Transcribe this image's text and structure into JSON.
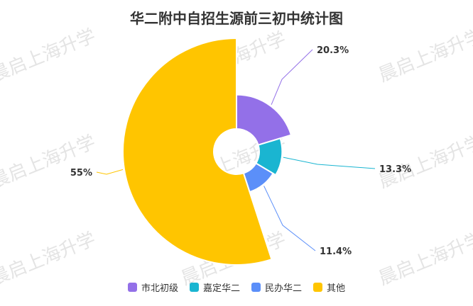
{
  "watermark": "晨启上海升学",
  "chart_data": {
    "type": "pie",
    "title": "华二附中自招生源前三初中统计图",
    "legend_position": "bottom",
    "slices": [
      {
        "name": "市北初级",
        "value": 20.3,
        "label": "20.3%",
        "color": "#9370E8"
      },
      {
        "name": "嘉定华二",
        "value": 13.3,
        "label": "13.3%",
        "color": "#1AB5D1"
      },
      {
        "name": "民办华二",
        "value": 11.4,
        "label": "11.4%",
        "color": "#5B8FF9"
      },
      {
        "name": "其他",
        "value": 55,
        "label": "55%",
        "color": "#FFC500"
      }
    ]
  }
}
